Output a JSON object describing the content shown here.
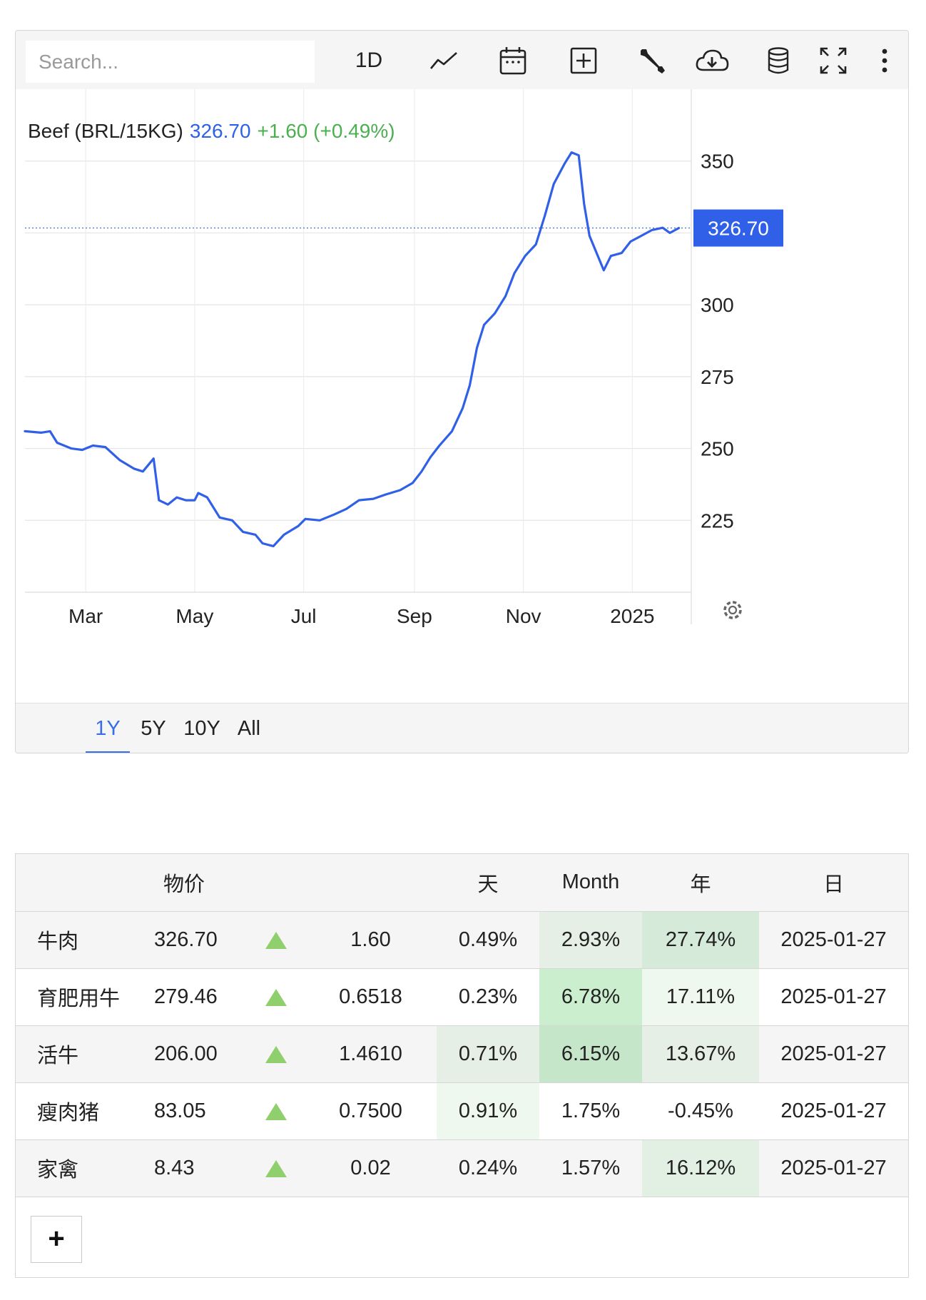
{
  "toolbar": {
    "search_placeholder": "Search...",
    "interval_label": "1D",
    "icons": [
      "line-chart-icon",
      "calendar-icon",
      "add-box-icon",
      "wrench-icon",
      "cloud-download-icon",
      "database-icon",
      "fullscreen-icon",
      "more-vertical-icon"
    ]
  },
  "chart": {
    "line_color": "#3060e8",
    "header": {
      "name": "Beef (BRL/15KG)",
      "price": "326.70",
      "change": "+1.60 (+0.49%)",
      "price_color": "#3060e8",
      "change_color": "#4caf50"
    },
    "last_price_label": "326.70",
    "settings_icon": "gear-icon",
    "ranges": [
      "1Y",
      "5Y",
      "10Y",
      "All"
    ],
    "active_range": "1Y"
  },
  "chart_data": {
    "type": "line",
    "title": "Beef (BRL/15KG)",
    "x_tick_labels": [
      "Mar",
      "May",
      "Jul",
      "Sep",
      "Nov",
      "2025"
    ],
    "x_tick_dates": [
      "2024-03-01",
      "2024-05-01",
      "2024-07-01",
      "2024-09-01",
      "2024-11-01",
      "2025-01-01"
    ],
    "y_tick_labels": [
      "225",
      "250",
      "275",
      "300",
      "350"
    ],
    "y_ticks": [
      225,
      250,
      275,
      300,
      325,
      350
    ],
    "ylim": [
      200,
      375
    ],
    "xlim": [
      "2024-01-27",
      "2025-02-03"
    ],
    "grid": true,
    "legend": "none",
    "last_value": 326.7,
    "series": [
      {
        "values": [
          [
            "2024-01-27",
            256.0
          ],
          [
            "2024-02-05",
            255.5
          ],
          [
            "2024-02-10",
            256.0
          ],
          [
            "2024-02-14",
            252.0
          ],
          [
            "2024-02-22",
            250.0
          ],
          [
            "2024-02-28",
            249.5
          ],
          [
            "2024-03-05",
            251.0
          ],
          [
            "2024-03-12",
            250.5
          ],
          [
            "2024-03-20",
            246.0
          ],
          [
            "2024-03-28",
            243.0
          ],
          [
            "2024-04-02",
            242.0
          ],
          [
            "2024-04-08",
            246.5
          ],
          [
            "2024-04-11",
            232.0
          ],
          [
            "2024-04-16",
            230.5
          ],
          [
            "2024-04-21",
            233.0
          ],
          [
            "2024-04-26",
            232.0
          ],
          [
            "2024-05-01",
            232.0
          ],
          [
            "2024-05-03",
            234.5
          ],
          [
            "2024-05-08",
            233.0
          ],
          [
            "2024-05-15",
            226.0
          ],
          [
            "2024-05-22",
            225.0
          ],
          [
            "2024-05-28",
            221.0
          ],
          [
            "2024-06-04",
            220.0
          ],
          [
            "2024-06-08",
            217.0
          ],
          [
            "2024-06-14",
            216.0
          ],
          [
            "2024-06-20",
            220.0
          ],
          [
            "2024-06-28",
            223.0
          ],
          [
            "2024-07-02",
            225.5
          ],
          [
            "2024-07-10",
            225.0
          ],
          [
            "2024-07-18",
            227.0
          ],
          [
            "2024-07-25",
            229.0
          ],
          [
            "2024-08-01",
            232.0
          ],
          [
            "2024-08-09",
            232.5
          ],
          [
            "2024-08-16",
            234.0
          ],
          [
            "2024-08-24",
            235.5
          ],
          [
            "2024-08-31",
            238.0
          ],
          [
            "2024-09-05",
            242.0
          ],
          [
            "2024-09-10",
            247.0
          ],
          [
            "2024-09-15",
            251.0
          ],
          [
            "2024-09-22",
            256.0
          ],
          [
            "2024-09-28",
            264.0
          ],
          [
            "2024-10-02",
            272.0
          ],
          [
            "2024-10-06",
            285.0
          ],
          [
            "2024-10-10",
            293.0
          ],
          [
            "2024-10-16",
            297.0
          ],
          [
            "2024-10-22",
            303.0
          ],
          [
            "2024-10-27",
            311.0
          ],
          [
            "2024-11-02",
            317.0
          ],
          [
            "2024-11-08",
            321.0
          ],
          [
            "2024-11-13",
            331.0
          ],
          [
            "2024-11-18",
            342.0
          ],
          [
            "2024-11-24",
            349.0
          ],
          [
            "2024-11-28",
            353.0
          ],
          [
            "2024-12-02",
            352.0
          ],
          [
            "2024-12-05",
            335.0
          ],
          [
            "2024-12-08",
            324.0
          ],
          [
            "2024-12-12",
            318.0
          ],
          [
            "2024-12-16",
            312.0
          ],
          [
            "2024-12-20",
            317.0
          ],
          [
            "2024-12-26",
            318.0
          ],
          [
            "2024-12-31",
            322.0
          ],
          [
            "2025-01-06",
            324.0
          ],
          [
            "2025-01-12",
            326.0
          ],
          [
            "2025-01-18",
            326.8
          ],
          [
            "2025-01-22",
            325.0
          ],
          [
            "2025-01-27",
            326.7
          ]
        ]
      }
    ]
  },
  "table": {
    "headers": [
      "",
      "物价",
      "",
      "",
      "天",
      "Month",
      "年",
      "日"
    ],
    "rows": [
      {
        "name": "牛肉",
        "price": "326.70",
        "change": "1.60",
        "day": "0.49%",
        "month": "2.93%",
        "year": "27.74%",
        "date": "2025-01-27"
      },
      {
        "name": "育肥用牛",
        "price": "279.46",
        "change": "0.6518",
        "day": "0.23%",
        "month": "6.78%",
        "year": "17.11%",
        "date": "2025-01-27"
      },
      {
        "name": "活牛",
        "price": "206.00",
        "change": "1.4610",
        "day": "0.71%",
        "month": "6.15%",
        "year": "13.67%",
        "date": "2025-01-27"
      },
      {
        "name": "瘦肉猪",
        "price": "83.05",
        "change": "0.7500",
        "day": "0.91%",
        "month": "1.75%",
        "year": "-0.45%",
        "date": "2025-01-27"
      },
      {
        "name": "家禽",
        "price": "8.43",
        "change": "0.02",
        "day": "0.24%",
        "month": "1.57%",
        "year": "16.12%",
        "date": "2025-01-27"
      }
    ],
    "cell_colors": [
      {
        "day": "",
        "month": "#e6efe6",
        "year": "#d5ead8"
      },
      {
        "day": "",
        "month": "#cbeecf",
        "year": "#eef8ee"
      },
      {
        "day": "#e6efe6",
        "month": "#c6e6ca",
        "year": "#e6efe6"
      },
      {
        "day": "#eef8ee",
        "month": "",
        "year": ""
      },
      {
        "day": "",
        "month": "",
        "year": "#e2f0e3"
      }
    ],
    "add_label": "+"
  }
}
